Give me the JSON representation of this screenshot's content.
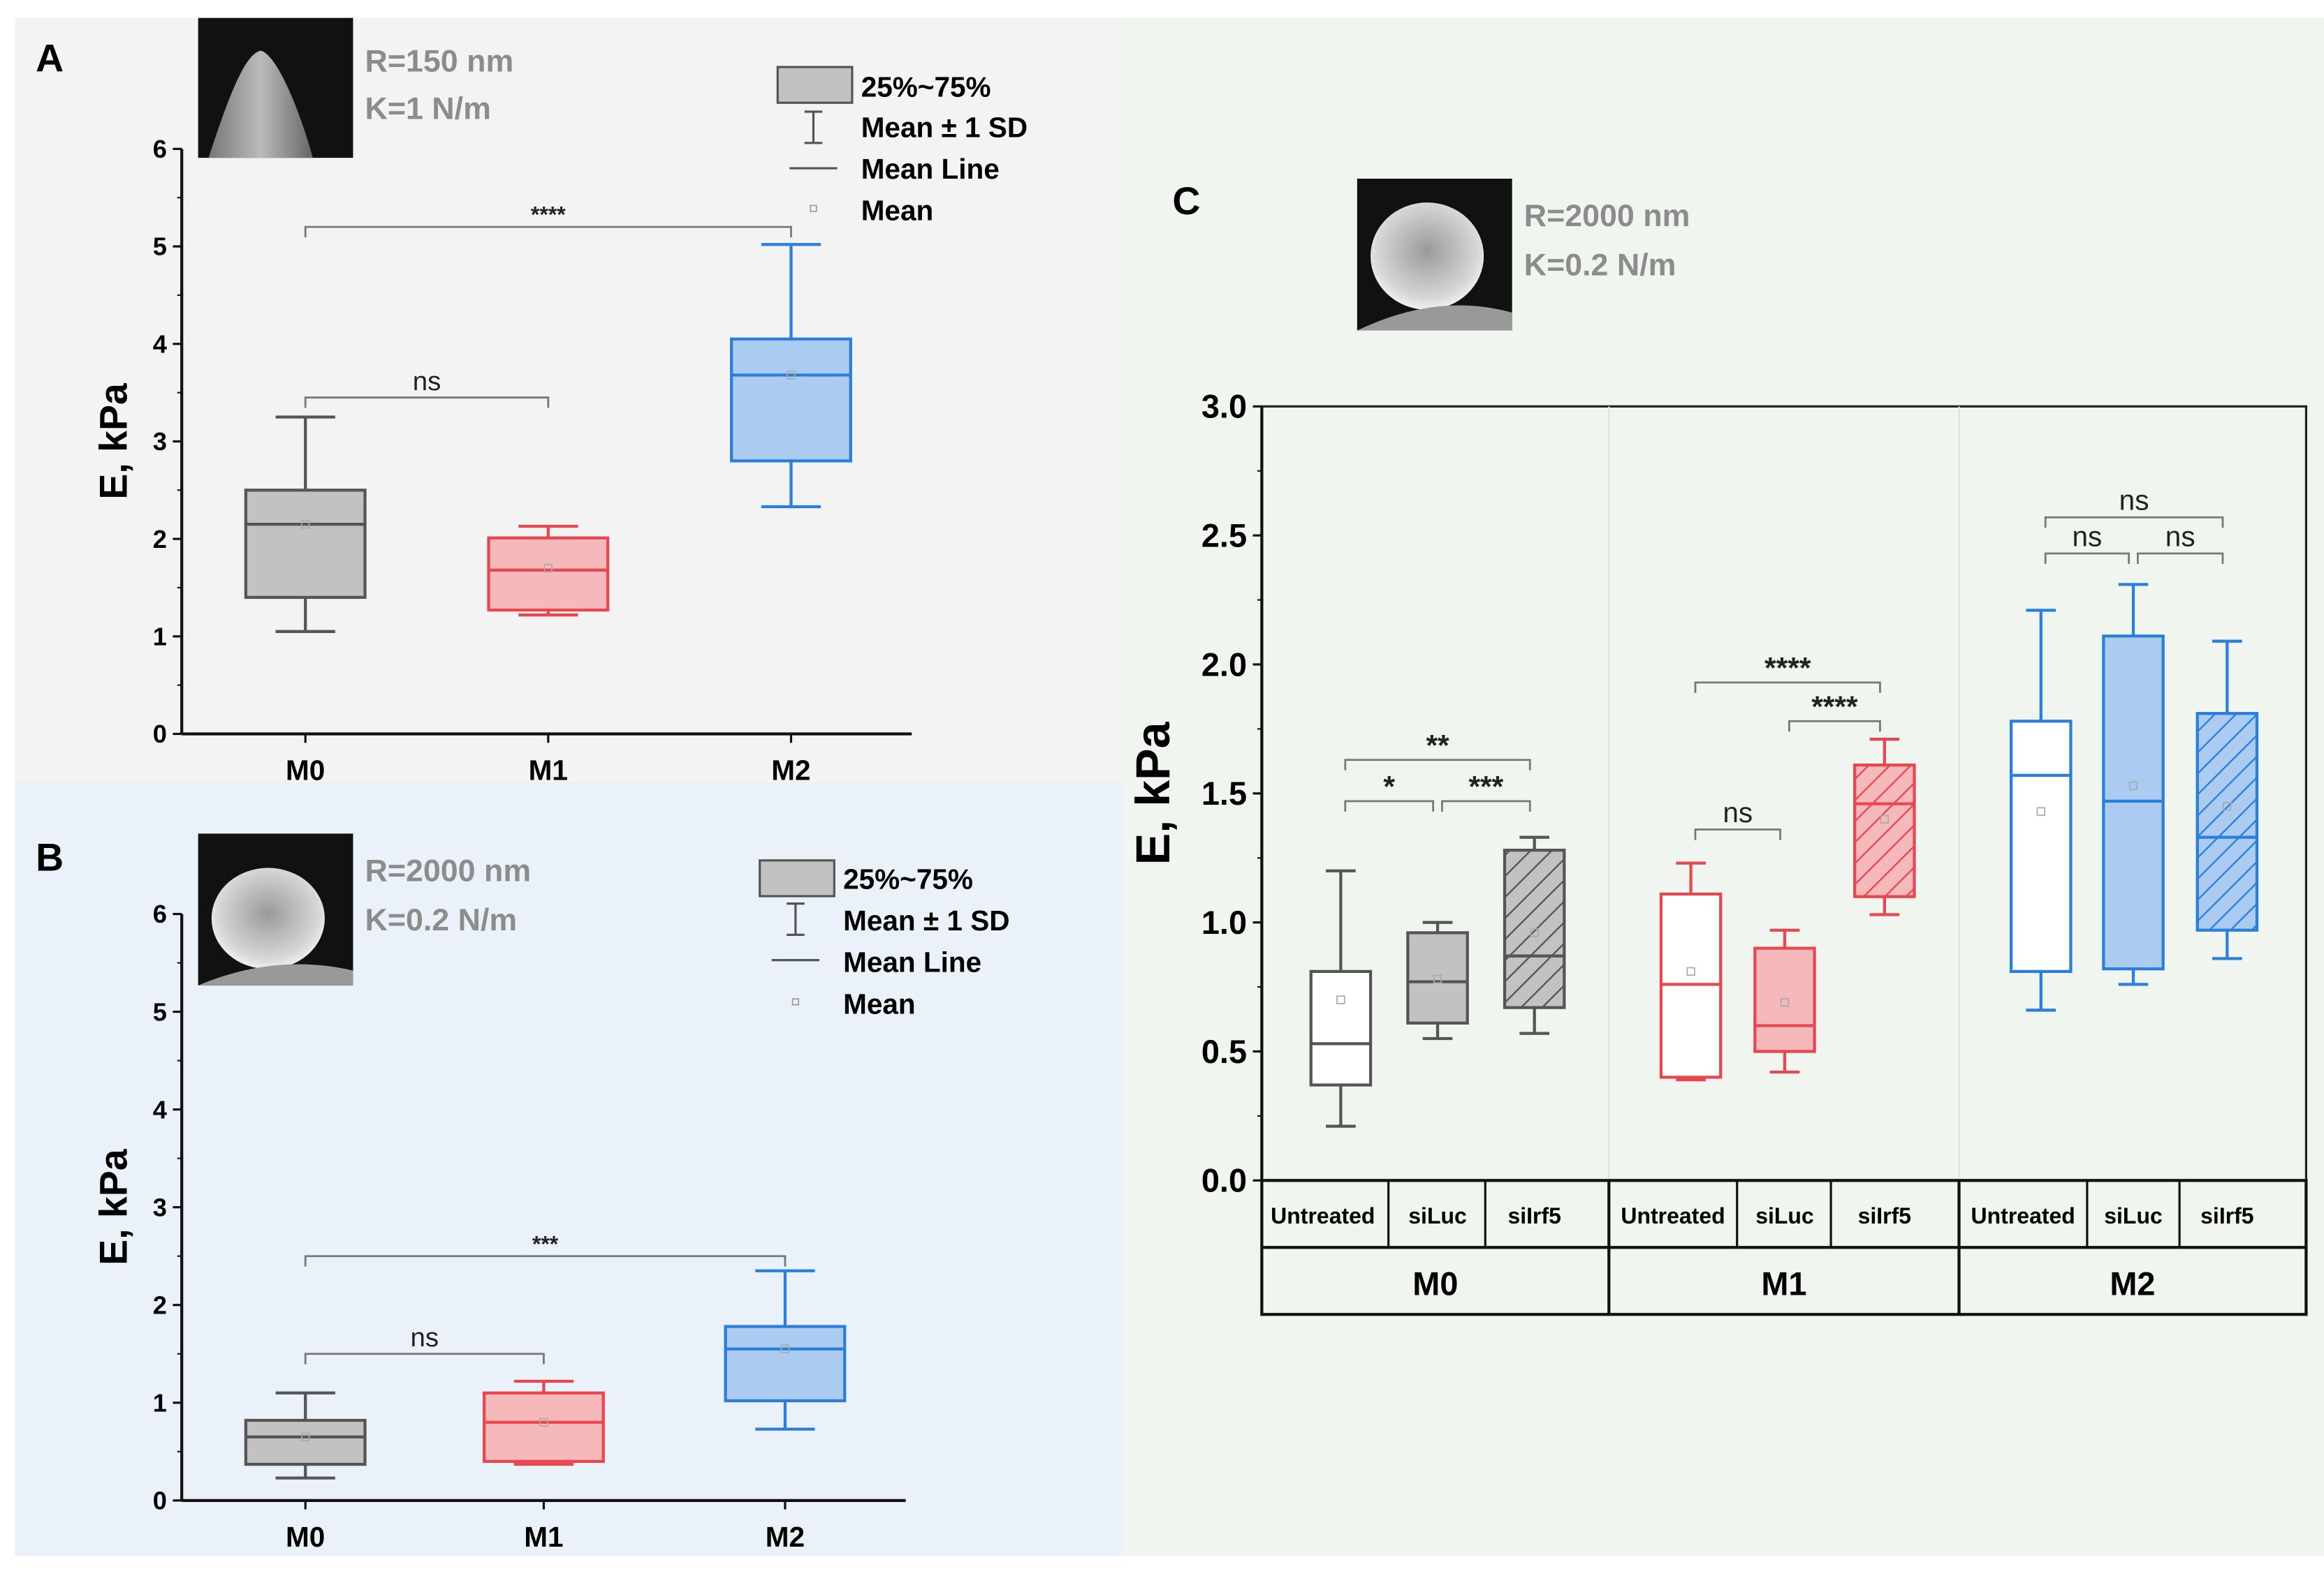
{
  "panels": {
    "A": {
      "letter": "A",
      "probe_r": "R=150 nm",
      "probe_k": "K=1 N/m"
    },
    "B": {
      "letter": "B",
      "probe_r": "R=2000 nm",
      "probe_k": "K=0.2 N/m"
    },
    "C": {
      "letter": "C",
      "probe_r": "R=2000 nm",
      "probe_k": "K=0.2 N/m"
    }
  },
  "legend": {
    "box": "25%~75%",
    "whisker": "Mean ± 1 SD",
    "line": "Mean Line",
    "mean": "Mean"
  },
  "colors": {
    "M0": "#555555",
    "M0_fill": "#c2c2c2",
    "M1": "#e8474f",
    "M1_fill": "#f6b9bb",
    "M2": "#2a7fdc",
    "M2_fill": "#abcbf1"
  },
  "chart_data": [
    {
      "id": "A",
      "type": "box",
      "ylabel": "E, kPa",
      "ylim": [
        0,
        6
      ],
      "yticks": [
        "0",
        "1",
        "2",
        "3",
        "4",
        "5",
        "6"
      ],
      "categories": [
        "M0",
        "M1",
        "M2"
      ],
      "boxes": [
        {
          "group": "M0",
          "q1": 1.4,
          "median": 2.15,
          "q3": 2.5,
          "low": 1.05,
          "high": 3.25,
          "mean": 2.15,
          "fill": "solid"
        },
        {
          "group": "M1",
          "q1": 1.27,
          "median": 1.68,
          "q3": 2.01,
          "low": 1.22,
          "high": 2.13,
          "mean": 1.7,
          "fill": "solid"
        },
        {
          "group": "M2",
          "q1": 2.8,
          "median": 3.68,
          "q3": 4.05,
          "low": 2.33,
          "high": 5.02,
          "mean": 3.68,
          "fill": "solid"
        }
      ],
      "brackets": [
        {
          "from": 0,
          "to": 1,
          "y": 3.45,
          "label": "ns"
        },
        {
          "from": 0,
          "to": 2,
          "y": 5.2,
          "label": "****"
        }
      ]
    },
    {
      "id": "B",
      "type": "box",
      "ylabel": "E, kPa",
      "ylim": [
        0,
        6
      ],
      "yticks": [
        "0",
        "1",
        "2",
        "3",
        "4",
        "5",
        "6"
      ],
      "categories": [
        "M0",
        "M1",
        "M2"
      ],
      "boxes": [
        {
          "group": "M0",
          "q1": 0.37,
          "median": 0.65,
          "q3": 0.82,
          "low": 0.23,
          "high": 1.1,
          "mean": 0.65,
          "fill": "solid"
        },
        {
          "group": "M1",
          "q1": 0.4,
          "median": 0.8,
          "q3": 1.1,
          "low": 0.37,
          "high": 1.22,
          "mean": 0.8,
          "fill": "solid"
        },
        {
          "group": "M2",
          "q1": 1.02,
          "median": 1.55,
          "q3": 1.78,
          "low": 0.73,
          "high": 2.35,
          "mean": 1.55,
          "fill": "solid"
        }
      ],
      "brackets": [
        {
          "from": 0,
          "to": 1,
          "y": 1.5,
          "label": "ns"
        },
        {
          "from": 0,
          "to": 2,
          "y": 2.5,
          "label": "***"
        }
      ]
    },
    {
      "id": "C",
      "type": "box",
      "ylabel": "E, kPa",
      "ylim": [
        0,
        3
      ],
      "yticks": [
        "0.0",
        "0.5",
        "1.0",
        "1.5",
        "2.0",
        "2.5",
        "3.0"
      ],
      "groups": [
        "M0",
        "M1",
        "M2"
      ],
      "categories": [
        "Untreated",
        "siLuc",
        "siIrf5",
        "Untreated",
        "siLuc",
        "siIrf5",
        "Untreated",
        "siLuc",
        "siIrf5"
      ],
      "boxes": [
        {
          "group": "M0",
          "q1": 0.37,
          "median": 0.53,
          "q3": 0.81,
          "low": 0.21,
          "high": 1.2,
          "mean": 0.7,
          "fill": "none"
        },
        {
          "group": "M0",
          "q1": 0.61,
          "median": 0.77,
          "q3": 0.96,
          "low": 0.55,
          "high": 1.0,
          "mean": 0.78,
          "fill": "solid"
        },
        {
          "group": "M0",
          "q1": 0.67,
          "median": 0.87,
          "q3": 1.28,
          "low": 0.57,
          "high": 1.33,
          "mean": 0.96,
          "fill": "hatch"
        },
        {
          "group": "M1",
          "q1": 0.4,
          "median": 0.76,
          "q3": 1.11,
          "low": 0.39,
          "high": 1.23,
          "mean": 0.81,
          "fill": "none"
        },
        {
          "group": "M1",
          "q1": 0.5,
          "median": 0.6,
          "q3": 0.9,
          "low": 0.42,
          "high": 0.97,
          "mean": 0.69,
          "fill": "solid"
        },
        {
          "group": "M1",
          "q1": 1.1,
          "median": 1.46,
          "q3": 1.61,
          "low": 1.03,
          "high": 1.71,
          "mean": 1.4,
          "fill": "hatch"
        },
        {
          "group": "M2",
          "q1": 0.81,
          "median": 1.57,
          "q3": 1.78,
          "low": 0.66,
          "high": 2.21,
          "mean": 1.43,
          "fill": "none"
        },
        {
          "group": "M2",
          "q1": 0.82,
          "median": 1.47,
          "q3": 2.11,
          "low": 0.76,
          "high": 2.31,
          "mean": 1.53,
          "fill": "solid"
        },
        {
          "group": "M2",
          "q1": 0.97,
          "median": 1.33,
          "q3": 1.81,
          "low": 0.86,
          "high": 2.09,
          "mean": 1.45,
          "fill": "hatch"
        }
      ],
      "brackets": [
        {
          "from": 0,
          "to": 1,
          "y": 1.47,
          "label": "*"
        },
        {
          "from": 1,
          "to": 2,
          "y": 1.47,
          "label": "***"
        },
        {
          "from": 0,
          "to": 2,
          "y": 1.63,
          "label": "**"
        },
        {
          "from": 3,
          "to": 4,
          "y": 1.36,
          "label": "ns"
        },
        {
          "from": 4,
          "to": 5,
          "y": 1.78,
          "label": "****"
        },
        {
          "from": 3,
          "to": 5,
          "y": 1.93,
          "label": "****"
        },
        {
          "from": 6,
          "to": 7,
          "y": 2.43,
          "label": "ns"
        },
        {
          "from": 7,
          "to": 8,
          "y": 2.43,
          "label": "ns"
        },
        {
          "from": 6,
          "to": 8,
          "y": 2.57,
          "label": "ns"
        }
      ]
    }
  ]
}
